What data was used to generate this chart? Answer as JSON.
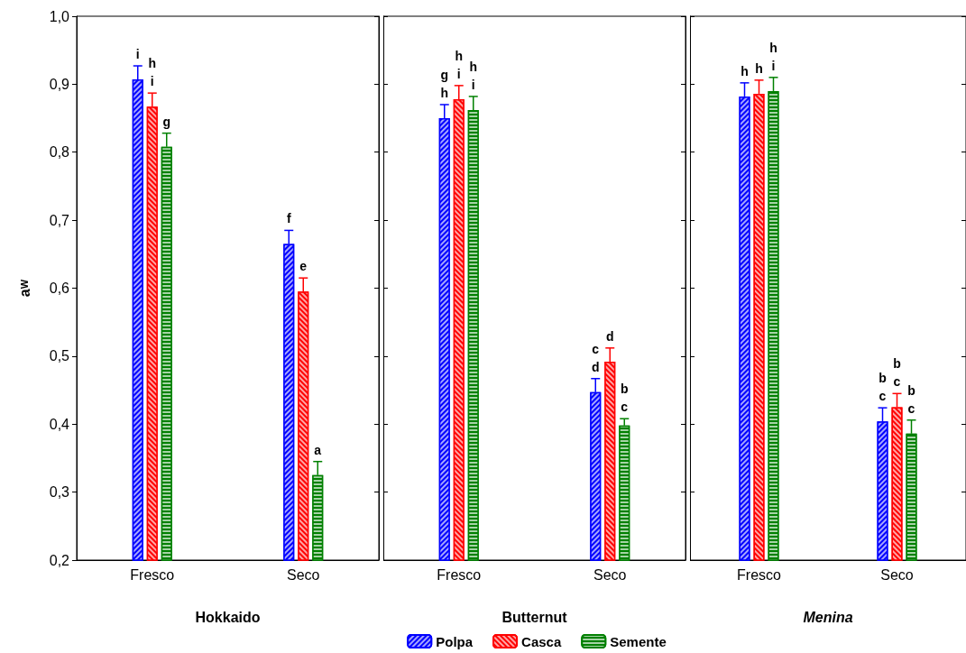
{
  "chart_data": [
    {
      "type": "bar",
      "xlabel": "Hokkaido",
      "ylabel": "a$_{W}$",
      "categories": [
        "Fresco",
        "Seco"
      ],
      "ylim": [
        0.2,
        1.0
      ],
      "yticks": [
        {
          "value": 0.2,
          "label": "0,2"
        },
        {
          "value": 0.3,
          "label": "0,3"
        },
        {
          "value": 0.4,
          "label": "0,4"
        },
        {
          "value": 0.5,
          "label": "0,5"
        },
        {
          "value": 0.6,
          "label": "0,6"
        },
        {
          "value": 0.7,
          "label": "0,7"
        },
        {
          "value": 0.8,
          "label": "0,8"
        },
        {
          "value": 0.9,
          "label": "0,9"
        },
        {
          "value": 1.0,
          "label": "1,0"
        }
      ],
      "series": [
        {
          "color": "#0000ff",
          "values": [
            0.907,
            0.665
          ],
          "errors": [
            0.02,
            0.02
          ],
          "value_labels": [
            "i",
            "f"
          ]
        },
        {
          "color": "#ff0000",
          "values": [
            0.867,
            0.595
          ],
          "errors": [
            0.02,
            0.02
          ],
          "value_labels": [
            "h\ni",
            "e"
          ]
        },
        {
          "color": "#008000",
          "values": [
            0.808,
            0.325
          ],
          "errors": [
            0.02,
            0.02
          ],
          "value_labels": [
            "g",
            "a"
          ]
        }
      ]
    },
    {
      "type": "bar",
      "xlabel": "Butternut",
      "categories": [
        "Fresco",
        "Seco"
      ],
      "ylim": [
        0.2,
        1.0
      ],
      "yticks": [
        {
          "value": 0.2,
          "label": null
        },
        {
          "value": 0.3,
          "label": null
        },
        {
          "value": 0.4,
          "label": null
        },
        {
          "value": 0.5,
          "label": null
        },
        {
          "value": 0.6,
          "label": null
        },
        {
          "value": 0.7,
          "label": null
        },
        {
          "value": 0.8,
          "label": null
        },
        {
          "value": 0.9,
          "label": null
        },
        {
          "value": 1.0,
          "label": null
        }
      ],
      "tick_labels": "x",
      "legend": "bottom",
      "series": [
        {
          "name": "Polpa",
          "color": "#0000ff",
          "values": [
            0.85,
            0.447
          ],
          "errors": [
            0.02,
            0.02
          ],
          "value_labels": [
            "g\nh",
            "c\nd"
          ]
        },
        {
          "name": "Casca",
          "color": "#ff0000",
          "values": [
            0.878,
            0.492
          ],
          "errors": [
            0.02,
            0.02
          ],
          "value_labels": [
            "h\ni",
            "d"
          ]
        },
        {
          "name": "Semente",
          "color": "#008000",
          "values": [
            0.862,
            0.398
          ],
          "errors": [
            0.02,
            0.01
          ],
          "value_labels": [
            "h\ni",
            "b\nc"
          ]
        }
      ]
    },
    {
      "type": "bar",
      "xlabel": "Menina",
      "categories": [
        "Fresco",
        "Seco"
      ],
      "ylim": [
        0.2,
        1.0
      ],
      "yticks": [
        {
          "value": 0.2,
          "label": null
        },
        {
          "value": 0.3,
          "label": null
        },
        {
          "value": 0.4,
          "label": null
        },
        {
          "value": 0.5,
          "label": null
        },
        {
          "value": 0.6,
          "label": null
        },
        {
          "value": 0.7,
          "label": null
        },
        {
          "value": 0.8,
          "label": null
        },
        {
          "value": 0.9,
          "label": null
        },
        {
          "value": 1.0,
          "label": null
        }
      ],
      "tick_labels": "x",
      "series": [
        {
          "color": "#0000ff",
          "values": [
            0.882,
            0.404
          ],
          "errors": [
            0.02,
            0.02
          ],
          "value_labels": [
            "h",
            "b\nc"
          ]
        },
        {
          "color": "#ff0000",
          "values": [
            0.886,
            0.425
          ],
          "errors": [
            0.02,
            0.02
          ],
          "value_labels": [
            "h",
            "b\nc"
          ]
        },
        {
          "color": "#008000",
          "values": [
            0.89,
            0.386
          ],
          "errors": [
            0.02,
            0.02
          ],
          "value_labels": [
            "h\ni",
            "b\nc"
          ]
        }
      ]
    }
  ]
}
